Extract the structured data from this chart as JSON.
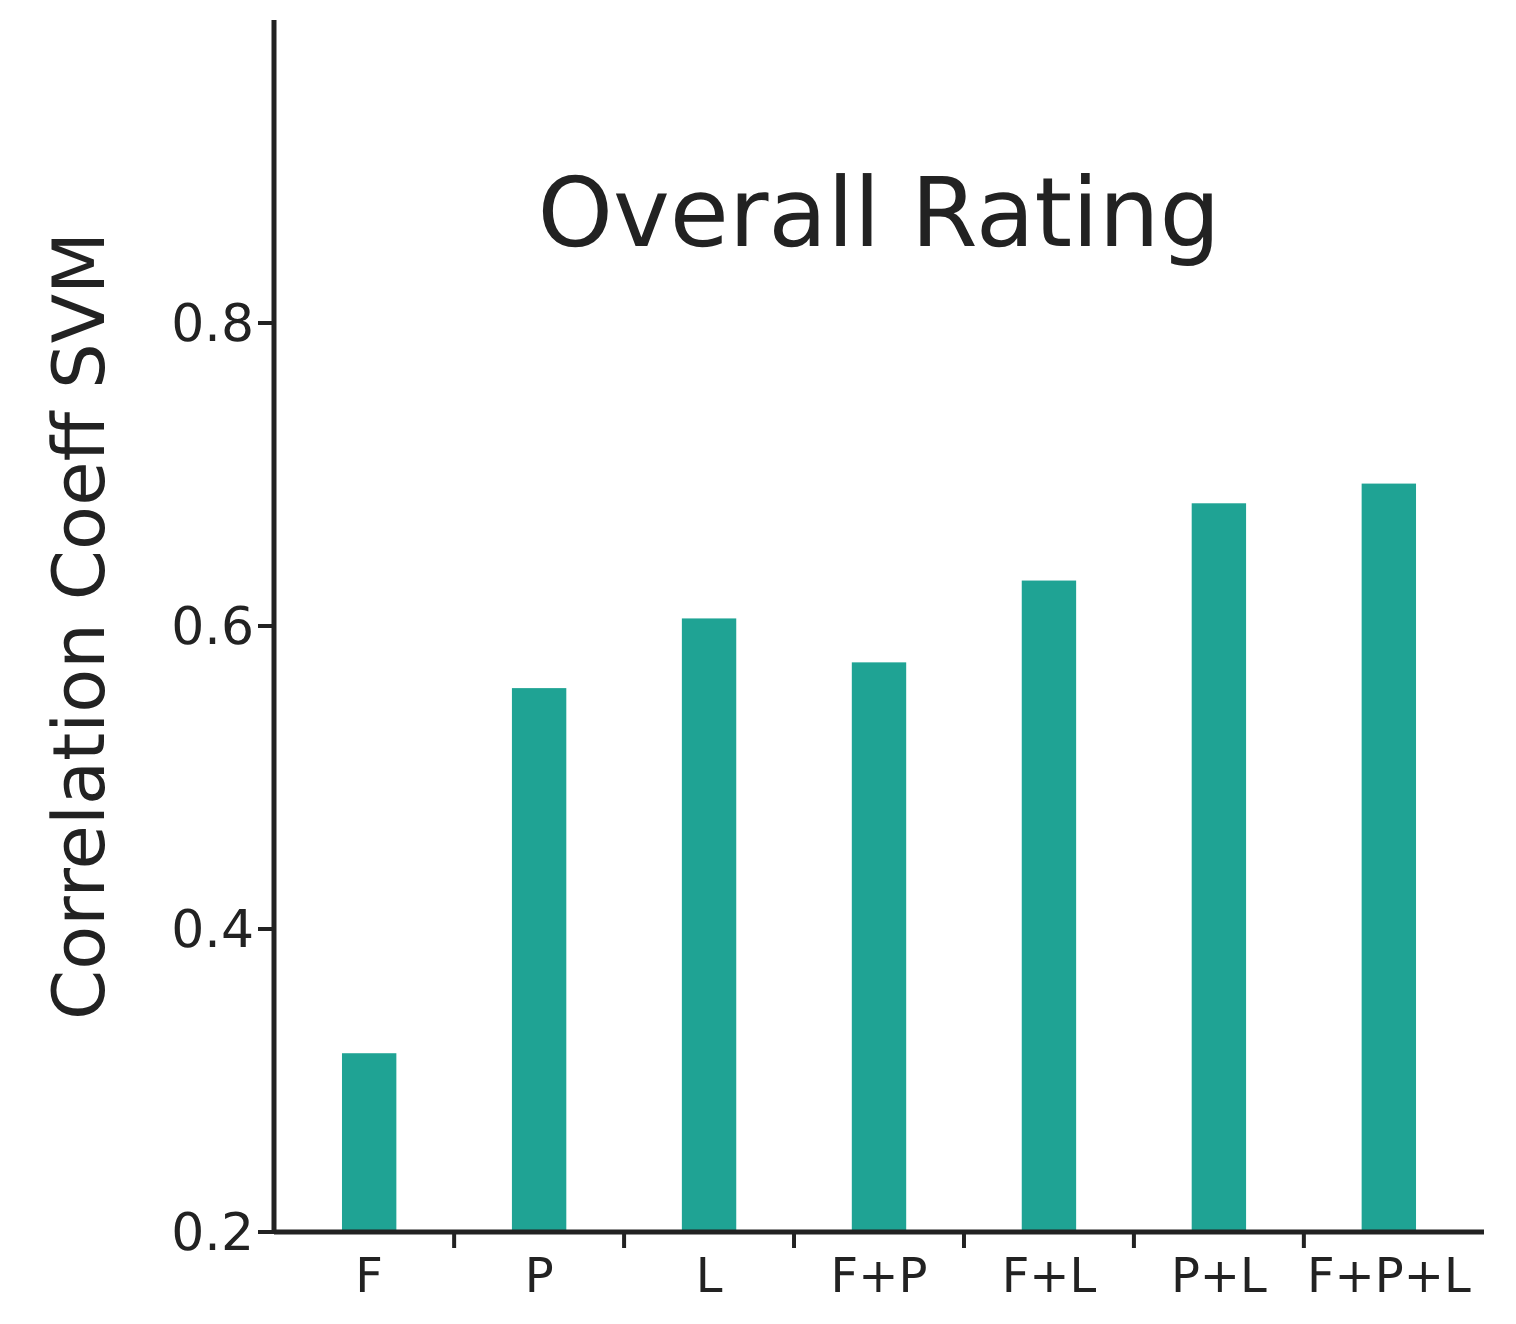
{
  "chart_data": {
    "type": "bar",
    "title": "Overall Rating",
    "ylabel": "Correlation Coeff SVM",
    "categories": [
      "F",
      "P",
      "L",
      "F+P",
      "F+L",
      "P+L",
      "F+P+L"
    ],
    "values": [
      0.318,
      0.559,
      0.605,
      0.576,
      0.63,
      0.681,
      0.694
    ],
    "color": "#1fa394",
    "ylim": [
      0.2,
      1.0
    ],
    "yticks": [
      0.2,
      0.4,
      0.6,
      0.8
    ],
    "grid": false
  }
}
